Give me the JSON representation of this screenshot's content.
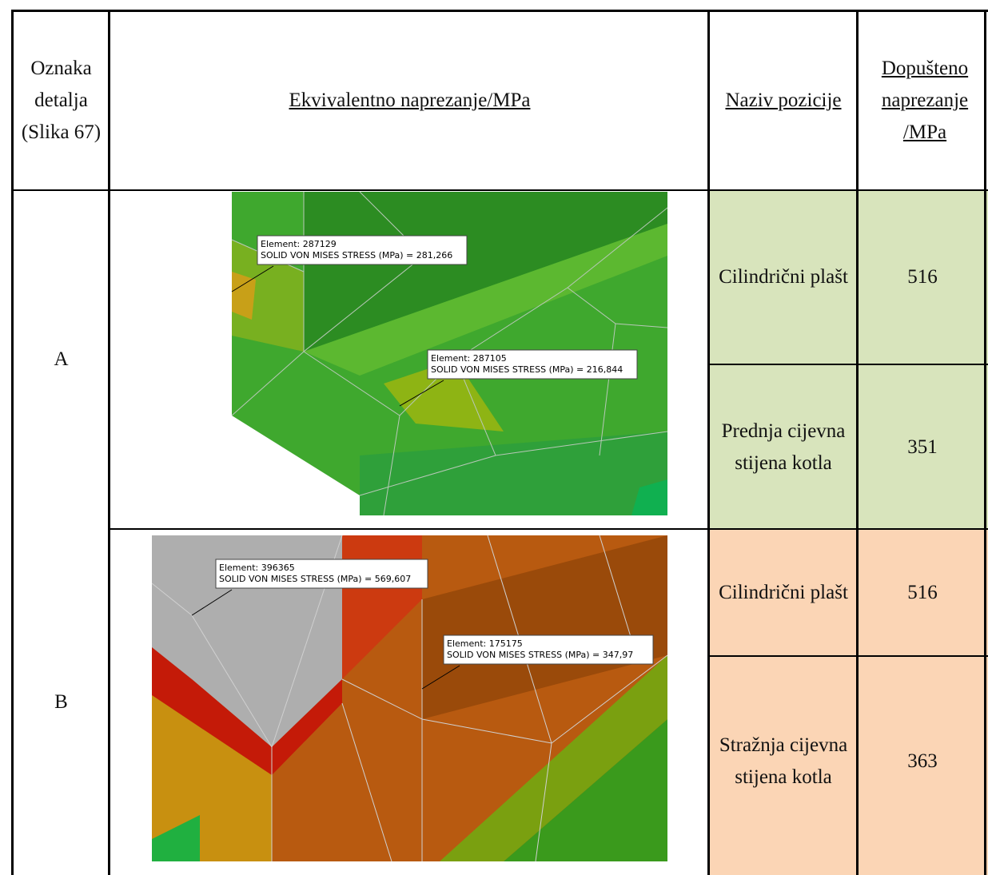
{
  "header": {
    "detail": "Oznaka detalja (Slika 67)",
    "stress": "Ekvivalentno naprezanje/MPa",
    "position": "Naziv pozicije",
    "allowed": "Dopušteno naprezanje /MPa"
  },
  "rows": [
    {
      "label": "A",
      "callouts": [
        {
          "element": "Element: 287129",
          "stress": "SOLID VON MISES STRESS (MPa)  = 281,266"
        },
        {
          "element": "Element: 287105",
          "stress": "SOLID VON MISES STRESS (MPa)  = 216,844"
        }
      ],
      "parts": [
        {
          "name": "Cilindrični plašt",
          "allowed": "516"
        },
        {
          "name": "Prednja cijevna stijena kotla",
          "allowed": "351"
        }
      ]
    },
    {
      "label": "B",
      "callouts": [
        {
          "element": "Element: 396365",
          "stress": "SOLID VON MISES STRESS (MPa)  = 569,607"
        },
        {
          "element": "Element: 175175",
          "stress": "SOLID VON MISES STRESS (MPa)  = 347,97"
        }
      ],
      "parts": [
        {
          "name": "Cilindrični plašt",
          "allowed": "516"
        },
        {
          "name": "Stražnja cijevna stijena kotla",
          "allowed": "363"
        }
      ]
    }
  ]
}
